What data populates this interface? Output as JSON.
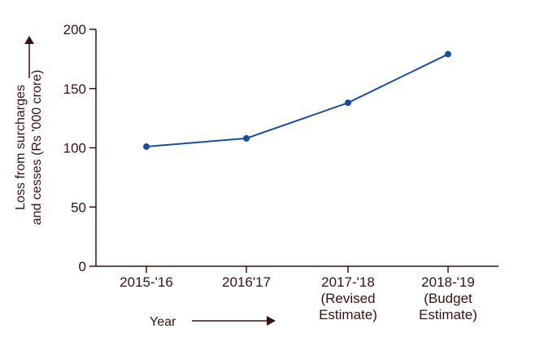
{
  "chart_data": {
    "type": "line",
    "categories": [
      [
        "2015-'16"
      ],
      [
        "2016'17"
      ],
      [
        "2017-'18",
        "(Revised",
        "Estimate)"
      ],
      [
        "2018-'19",
        "(Budget",
        "Estimate)"
      ]
    ],
    "series": [
      {
        "values": [
          101,
          108,
          138,
          179
        ]
      }
    ],
    "ylim": [
      0,
      200
    ],
    "yticks": [
      0,
      50,
      100,
      150,
      200
    ],
    "xlabel": "Year",
    "ylabel": [
      "Loss from surcharges",
      "and cesses (Rs '000 crore)"
    ],
    "grid": false,
    "colors": {
      "series": "#1a4f9c",
      "axis": "#3a1010",
      "text": "#3a1010"
    }
  }
}
